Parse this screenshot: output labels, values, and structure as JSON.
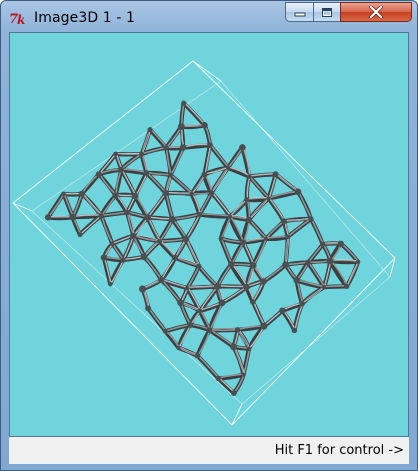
{
  "window": {
    "title": "Image3D 1 - 1",
    "app_icon": "imagej-3d-icon",
    "buttons": {
      "minimize": "minimize-icon",
      "maximize": "maximize-icon",
      "close": "close-icon"
    }
  },
  "viewer": {
    "background_color": "#6fd4db",
    "content": "3d-foam-network-rendering"
  },
  "status_bar": {
    "hint": "Hit F1 for control ->"
  }
}
